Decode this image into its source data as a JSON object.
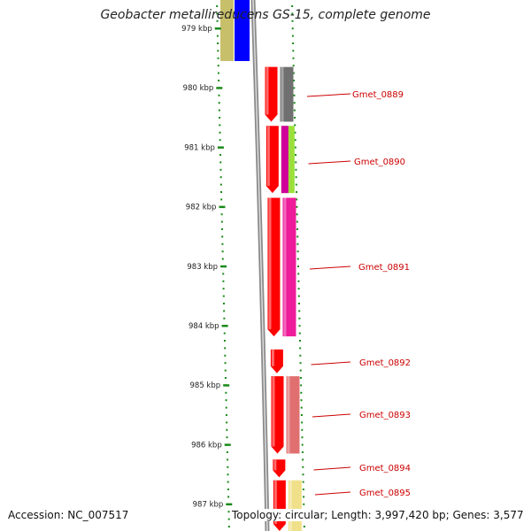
{
  "title": "Geobacter metallireducens GS-15, complete genome",
  "ticks": [
    "979 kbp",
    "980 kbp",
    "981 kbp",
    "982 kbp",
    "983 kbp",
    "984 kbp",
    "985 kbp",
    "986 kbp",
    "987 kbp"
  ],
  "genes": [
    {
      "label": "Gmet_0889",
      "start_kbp": 979.65,
      "end_kbp": 980.57,
      "strand": "forward",
      "color": "#707070"
    },
    {
      "label": "Gmet_0890",
      "start_kbp": 980.64,
      "end_kbp": 981.77,
      "strand": "forward",
      "color": "#9be03a"
    },
    {
      "label": "Gmet_0891",
      "start_kbp": 981.85,
      "end_kbp": 984.18,
      "strand": "forward",
      "color": "#ee1b9a"
    },
    {
      "label": "Gmet_0892",
      "start_kbp": 984.4,
      "end_kbp": 984.8,
      "strand": "forward",
      "color": "#ff0000"
    },
    {
      "label": "Gmet_0893",
      "start_kbp": 984.85,
      "end_kbp": 986.15,
      "strand": "forward",
      "color": "#e07070"
    },
    {
      "label": "Gmet_0894",
      "start_kbp": 986.25,
      "end_kbp": 986.55,
      "strand": "forward",
      "color": "#ff0000"
    },
    {
      "label": "Gmet_0895",
      "start_kbp": 986.6,
      "end_kbp": 987.8,
      "strand": "forward",
      "color": "#f0e08a"
    }
  ],
  "upstream_genes": [
    {
      "start_kbp": 978.0,
      "end_kbp": 979.55,
      "color": "#c8bf6a"
    },
    {
      "start_kbp": 978.0,
      "end_kbp": 979.55,
      "color": "#0000ff"
    }
  ],
  "colors": {
    "label": "#cc0000",
    "tick_dots": "#1a8a1a",
    "backbone": "#8a8a8a",
    "cds": "#ff0000"
  },
  "footer": {
    "accession": "Accession: NC_007517",
    "topology": "Topology: circular; Length: 3,997,420 bp; Genes: 3,577"
  }
}
